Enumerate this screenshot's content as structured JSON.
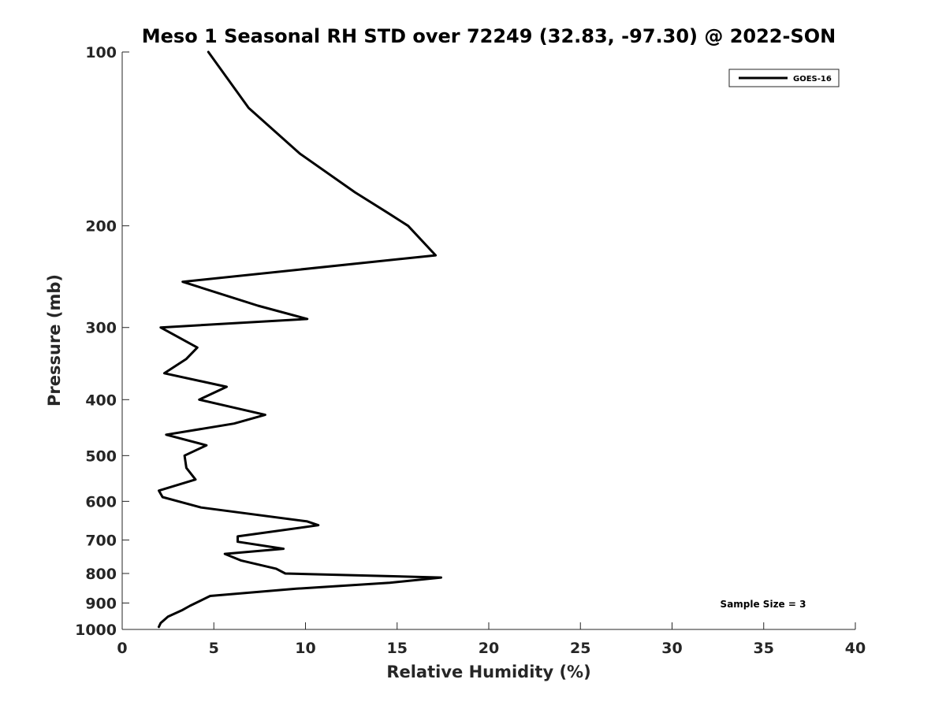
{
  "chart_data": {
    "type": "line",
    "title": "Meso 1 Seasonal RH STD over 72249 (32.83, -97.30) @ 2022-SON",
    "xlabel": "Relative Humidity (%)",
    "ylabel": "Pressure (mb)",
    "xlim": [
      0,
      40
    ],
    "ylim": [
      1000,
      100
    ],
    "yscale": "log",
    "y_reversed": true,
    "grid": false,
    "x_ticks": [
      0,
      5,
      10,
      15,
      20,
      25,
      30,
      35,
      40
    ],
    "x_tick_labels": [
      "0",
      "5",
      "10",
      "15",
      "20",
      "25",
      "30",
      "35",
      "40"
    ],
    "y_ticks": [
      100,
      200,
      300,
      400,
      500,
      600,
      700,
      800,
      900,
      1000
    ],
    "y_tick_labels": [
      "100",
      "200",
      "300",
      "400",
      "500",
      "600",
      "700",
      "800",
      "900",
      "1000"
    ],
    "legend_position": "top-right",
    "series": [
      {
        "name": "GOES-16",
        "color": "#000000",
        "points": [
          [
            4.7,
            100
          ],
          [
            6.9,
            125
          ],
          [
            9.7,
            150
          ],
          [
            12.7,
            175
          ],
          [
            14.5,
            190
          ],
          [
            15.6,
            200
          ],
          [
            17.1,
            225
          ],
          [
            3.3,
            250
          ],
          [
            7.4,
            275
          ],
          [
            10.1,
            290
          ],
          [
            2.1,
            300
          ],
          [
            4.1,
            325
          ],
          [
            3.5,
            340
          ],
          [
            2.3,
            360
          ],
          [
            5.7,
            380
          ],
          [
            4.2,
            400
          ],
          [
            7.8,
            425
          ],
          [
            6.1,
            440
          ],
          [
            2.4,
            460
          ],
          [
            4.6,
            480
          ],
          [
            3.4,
            500
          ],
          [
            3.5,
            525
          ],
          [
            4.0,
            550
          ],
          [
            2.0,
            575
          ],
          [
            2.2,
            590
          ],
          [
            4.3,
            615
          ],
          [
            10.1,
            650
          ],
          [
            10.7,
            660
          ],
          [
            6.3,
            690
          ],
          [
            6.3,
            705
          ],
          [
            8.8,
            725
          ],
          [
            5.6,
            740
          ],
          [
            6.5,
            760
          ],
          [
            8.4,
            785
          ],
          [
            8.9,
            800
          ],
          [
            17.4,
            813
          ],
          [
            14.6,
            830
          ],
          [
            9.5,
            850
          ],
          [
            4.8,
            875
          ],
          [
            3.7,
            910
          ],
          [
            3.3,
            925
          ],
          [
            2.5,
            950
          ],
          [
            2.1,
            975
          ],
          [
            2.0,
            990
          ]
        ]
      }
    ],
    "annotations": [
      "Sample Size = 3"
    ]
  }
}
